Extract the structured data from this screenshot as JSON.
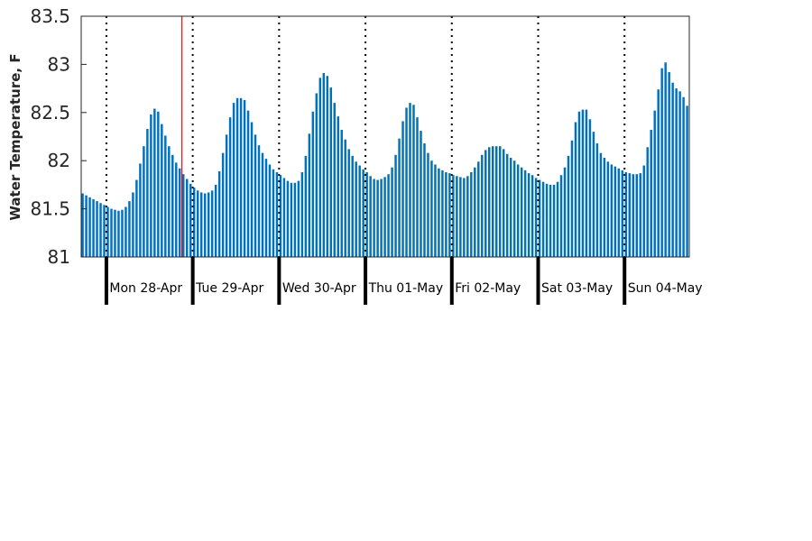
{
  "chart_data": {
    "type": "bar",
    "ylabel": "Water Temperature, F",
    "xlabel": "",
    "title": "",
    "ylim": [
      81,
      83.5
    ],
    "yticks": [
      "81",
      "81.5",
      "82",
      "82.5",
      "83",
      "83.5"
    ],
    "x_start": "2025-04-27 17:00",
    "sample_interval_hours": 1,
    "now_marker": "2025-04-28 21:00",
    "day_labels": [
      "Mon 28-Apr",
      "Tue 29-Apr",
      "Wed 30-Apr",
      "Thu 01-May",
      "Fri 02-May",
      "Sat 03-May",
      "Sun 04-May"
    ],
    "bar_color": "#0072bd",
    "now_marker_color": "#ff0000",
    "values": [
      81.66,
      81.64,
      81.62,
      81.6,
      81.58,
      81.56,
      81.54,
      81.52,
      81.5,
      81.49,
      81.48,
      81.49,
      81.52,
      81.58,
      81.67,
      81.8,
      81.97,
      82.15,
      82.33,
      82.48,
      82.54,
      82.51,
      82.38,
      82.26,
      82.15,
      82.06,
      81.98,
      81.92,
      81.86,
      81.81,
      81.76,
      81.72,
      81.69,
      81.67,
      81.66,
      81.67,
      81.69,
      81.75,
      81.89,
      82.08,
      82.27,
      82.45,
      82.6,
      82.65,
      82.65,
      82.63,
      82.52,
      82.4,
      82.27,
      82.16,
      82.08,
      82.02,
      81.96,
      81.91,
      81.88,
      81.85,
      81.82,
      81.79,
      81.77,
      81.77,
      81.79,
      81.88,
      82.05,
      82.28,
      82.51,
      82.7,
      82.86,
      82.91,
      82.88,
      82.76,
      82.6,
      82.46,
      82.32,
      82.22,
      82.12,
      82.05,
      81.99,
      81.95,
      81.91,
      81.88,
      81.84,
      81.81,
      81.8,
      81.81,
      81.83,
      81.86,
      81.93,
      82.06,
      82.23,
      82.41,
      82.55,
      82.6,
      82.58,
      82.45,
      82.31,
      82.18,
      82.08,
      82.0,
      81.96,
      81.92,
      81.9,
      81.88,
      81.87,
      81.85,
      81.84,
      81.83,
      81.82,
      81.84,
      81.88,
      81.93,
      81.99,
      82.06,
      82.11,
      82.14,
      82.15,
      82.15,
      82.15,
      82.12,
      82.07,
      82.03,
      82.0,
      81.96,
      81.93,
      81.9,
      81.87,
      81.85,
      81.82,
      81.8,
      81.78,
      81.76,
      81.75,
      81.75,
      81.78,
      81.85,
      81.93,
      82.05,
      82.21,
      82.4,
      82.51,
      82.53,
      82.53,
      82.43,
      82.3,
      82.18,
      82.08,
      82.03,
      81.99,
      81.96,
      81.94,
      81.92,
      81.9,
      81.88,
      81.87,
      81.86,
      81.86,
      81.87,
      81.95,
      82.14,
      82.32,
      82.52,
      82.74,
      82.96,
      83.02,
      82.92,
      82.81,
      82.75,
      82.72,
      82.66,
      82.57
    ]
  }
}
